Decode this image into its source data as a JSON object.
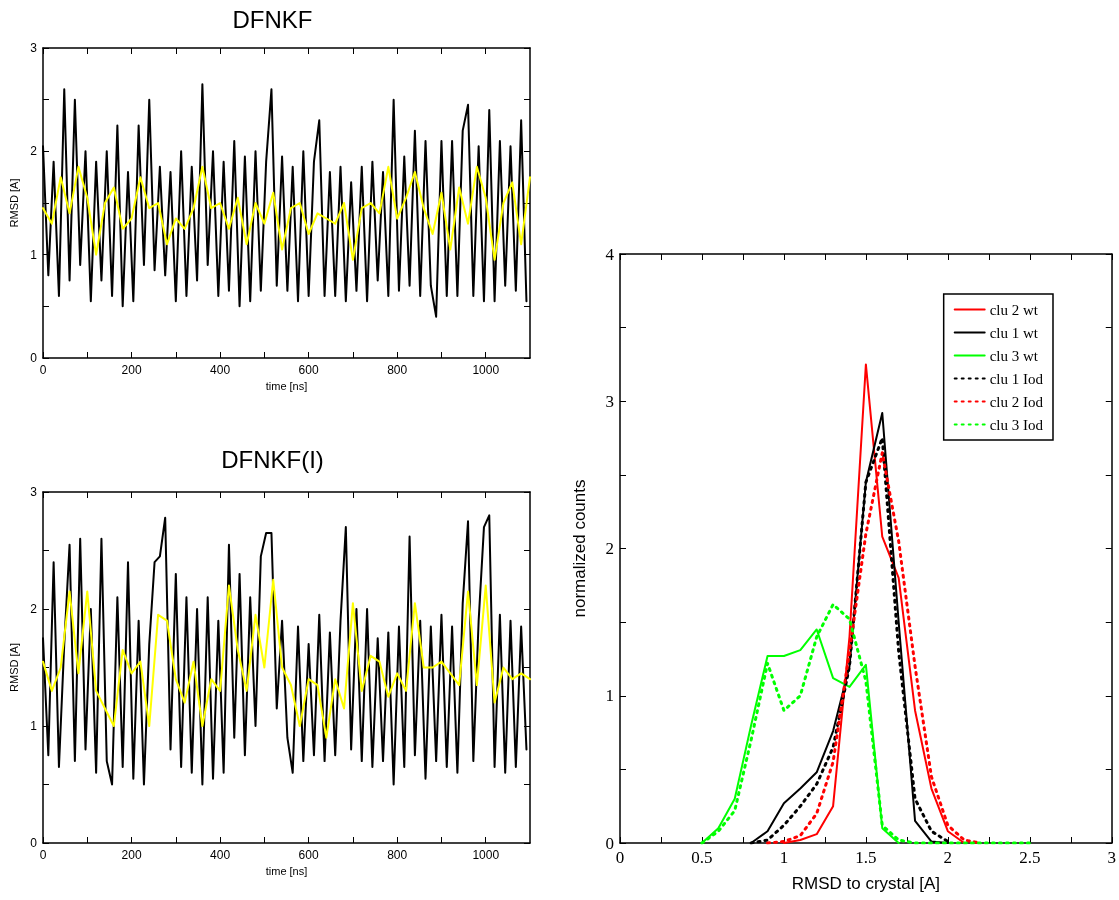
{
  "chart_data": [
    {
      "type": "line",
      "title": "DFNKF",
      "xlabel": "time [ns]",
      "ylabel": "RMSD [A]",
      "xlim": [
        0,
        1100
      ],
      "ylim": [
        0,
        3
      ],
      "xticks": [
        0,
        {
          "value": 100,
          "label": null
        },
        200,
        {
          "value": 300,
          "label": null
        },
        400,
        {
          "value": 500,
          "label": null
        },
        600,
        {
          "value": 700,
          "label": null
        },
        800,
        {
          "value": 900,
          "label": null
        },
        1000
      ],
      "yticks": [
        0,
        {
          "value": 0.5,
          "label": null
        },
        1,
        {
          "value": 1.5,
          "label": null
        },
        2,
        {
          "value": 2.5,
          "label": null
        },
        3
      ],
      "grid": false,
      "legend": false,
      "marker": "none",
      "series": [
        {
          "color": "#000000",
          "x": [
            0,
            12,
            24,
            36,
            48,
            60,
            72,
            84,
            96,
            108,
            120,
            132,
            144,
            156,
            168,
            180,
            192,
            204,
            216,
            228,
            240,
            252,
            264,
            276,
            288,
            300,
            312,
            324,
            336,
            348,
            360,
            372,
            384,
            396,
            408,
            420,
            432,
            444,
            456,
            468,
            480,
            492,
            504,
            516,
            528,
            540,
            552,
            564,
            576,
            588,
            600,
            612,
            624,
            636,
            648,
            660,
            672,
            684,
            696,
            708,
            720,
            732,
            744,
            756,
            768,
            780,
            792,
            804,
            816,
            828,
            840,
            852,
            864,
            876,
            888,
            900,
            912,
            924,
            936,
            948,
            960,
            972,
            984,
            996,
            1008,
            1020,
            1032,
            1044,
            1056,
            1068,
            1080,
            1092
          ],
          "values": [
            2.05,
            0.8,
            1.9,
            0.6,
            2.6,
            0.75,
            2.5,
            0.9,
            2.0,
            0.55,
            1.9,
            0.75,
            2.0,
            0.6,
            2.25,
            0.5,
            1.8,
            0.55,
            2.25,
            0.9,
            2.5,
            0.85,
            1.85,
            0.8,
            1.8,
            0.55,
            2.0,
            0.6,
            1.85,
            0.75,
            2.65,
            0.9,
            2.0,
            0.6,
            1.9,
            0.65,
            2.1,
            0.5,
            1.95,
            0.55,
            2.0,
            0.65,
            1.9,
            2.6,
            0.7,
            1.95,
            0.65,
            1.85,
            0.55,
            2.0,
            0.6,
            1.9,
            2.3,
            0.6,
            1.8,
            0.6,
            1.85,
            0.55,
            1.7,
            0.65,
            1.85,
            0.55,
            1.9,
            0.75,
            1.8,
            0.6,
            2.5,
            0.65,
            1.95,
            0.7,
            2.2,
            0.6,
            2.1,
            0.7,
            0.4,
            2.1,
            0.6,
            2.1,
            0.6,
            2.2,
            2.45,
            0.6,
            2.05,
            0.55,
            2.4,
            0.55,
            2.1,
            0.7,
            2.05,
            0.65,
            2.3,
            0.55
          ]
        },
        {
          "color": "#ffff00",
          "x": [
            0,
            20,
            40,
            60,
            80,
            100,
            120,
            140,
            160,
            180,
            200,
            220,
            240,
            260,
            280,
            300,
            320,
            340,
            360,
            380,
            400,
            420,
            440,
            460,
            480,
            500,
            520,
            540,
            560,
            580,
            600,
            620,
            640,
            660,
            680,
            700,
            720,
            740,
            760,
            780,
            800,
            820,
            840,
            860,
            880,
            900,
            920,
            940,
            960,
            980,
            1000,
            1020,
            1040,
            1060,
            1080,
            1100
          ],
          "values": [
            1.45,
            1.3,
            1.75,
            1.4,
            1.85,
            1.55,
            1.0,
            1.5,
            1.65,
            1.25,
            1.35,
            1.75,
            1.45,
            1.5,
            1.1,
            1.35,
            1.25,
            1.45,
            1.85,
            1.45,
            1.5,
            1.25,
            1.55,
            1.1,
            1.5,
            1.3,
            1.6,
            1.05,
            1.45,
            1.5,
            1.2,
            1.4,
            1.35,
            1.3,
            1.5,
            0.95,
            1.45,
            1.5,
            1.4,
            1.85,
            1.35,
            1.55,
            1.8,
            1.45,
            1.2,
            1.6,
            1.05,
            1.65,
            1.3,
            1.85,
            1.55,
            0.95,
            1.5,
            1.7,
            1.1,
            1.75
          ]
        }
      ]
    },
    {
      "type": "line",
      "title": "DFNKF(I)",
      "xlabel": "time [ns]",
      "ylabel": "RMSD [A]",
      "xlim": [
        0,
        1100
      ],
      "ylim": [
        0,
        3
      ],
      "xticks": [
        0,
        {
          "value": 100,
          "label": null
        },
        200,
        {
          "value": 300,
          "label": null
        },
        400,
        {
          "value": 500,
          "label": null
        },
        600,
        {
          "value": 700,
          "label": null
        },
        800,
        {
          "value": 900,
          "label": null
        },
        1000
      ],
      "yticks": [
        0,
        {
          "value": 0.5,
          "label": null
        },
        1,
        {
          "value": 1.5,
          "label": null
        },
        2,
        {
          "value": 2.5,
          "label": null
        },
        3
      ],
      "grid": false,
      "legend": false,
      "marker": "none",
      "series": [
        {
          "color": "#000000",
          "x": [
            0,
            12,
            24,
            36,
            48,
            60,
            72,
            84,
            96,
            108,
            120,
            132,
            144,
            156,
            168,
            180,
            192,
            204,
            216,
            228,
            240,
            252,
            264,
            276,
            288,
            300,
            312,
            324,
            336,
            348,
            360,
            372,
            384,
            396,
            408,
            420,
            432,
            444,
            456,
            468,
            480,
            492,
            504,
            516,
            528,
            540,
            552,
            564,
            576,
            588,
            600,
            612,
            624,
            636,
            648,
            660,
            672,
            684,
            696,
            708,
            720,
            732,
            744,
            756,
            768,
            780,
            792,
            804,
            816,
            828,
            840,
            852,
            864,
            876,
            888,
            900,
            912,
            924,
            936,
            948,
            960,
            972,
            984,
            996,
            1008,
            1020,
            1032,
            1044,
            1056,
            1068,
            1080,
            1092
          ],
          "values": [
            1.75,
            0.75,
            2.4,
            0.65,
            1.7,
            2.55,
            0.7,
            2.6,
            0.8,
            2.0,
            0.6,
            2.6,
            0.7,
            0.5,
            2.1,
            0.65,
            2.4,
            0.55,
            1.9,
            0.5,
            1.7,
            2.4,
            2.45,
            2.78,
            0.8,
            2.3,
            0.65,
            2.1,
            0.6,
            2.0,
            0.5,
            2.1,
            0.55,
            1.9,
            0.6,
            2.55,
            0.9,
            2.3,
            0.75,
            2.1,
            1.0,
            2.45,
            2.65,
            2.65,
            1.15,
            1.9,
            0.9,
            0.6,
            1.85,
            0.7,
            1.7,
            0.75,
            1.95,
            0.7,
            1.8,
            0.75,
            1.9,
            2.7,
            0.8,
            2.0,
            0.7,
            2.0,
            0.65,
            1.75,
            0.7,
            1.8,
            0.5,
            1.85,
            0.65,
            2.62,
            0.75,
            1.9,
            0.55,
            1.85,
            0.7,
            1.95,
            0.65,
            1.85,
            0.6,
            2.05,
            2.75,
            0.7,
            1.9,
            2.7,
            2.8,
            0.65,
            1.95,
            0.6,
            1.9,
            0.65,
            1.85,
            0.8
          ]
        },
        {
          "color": "#ffff00",
          "x": [
            0,
            20,
            40,
            60,
            80,
            100,
            120,
            140,
            160,
            180,
            200,
            220,
            240,
            260,
            280,
            300,
            320,
            340,
            360,
            380,
            400,
            420,
            440,
            460,
            480,
            500,
            520,
            540,
            560,
            580,
            600,
            620,
            640,
            660,
            680,
            700,
            720,
            740,
            760,
            780,
            800,
            820,
            840,
            860,
            880,
            900,
            920,
            940,
            960,
            980,
            1000,
            1020,
            1040,
            1060,
            1080,
            1100
          ],
          "values": [
            1.55,
            1.3,
            1.5,
            2.15,
            1.45,
            2.15,
            1.3,
            1.15,
            1.0,
            1.65,
            1.45,
            1.55,
            1.0,
            1.95,
            1.9,
            1.4,
            1.2,
            1.55,
            1.0,
            1.4,
            1.3,
            2.2,
            1.65,
            1.3,
            1.95,
            1.5,
            2.25,
            1.5,
            1.35,
            1.0,
            1.4,
            1.35,
            0.9,
            1.4,
            1.15,
            2.05,
            1.3,
            1.6,
            1.55,
            1.25,
            1.45,
            1.3,
            2.05,
            1.5,
            1.5,
            1.55,
            1.45,
            1.35,
            2.15,
            1.35,
            2.2,
            1.2,
            1.5,
            1.4,
            1.45,
            1.4
          ]
        }
      ]
    },
    {
      "type": "line",
      "xlabel": "RMSD to crystal [A]",
      "ylabel": "normalized counts",
      "xlim": [
        0,
        3
      ],
      "ylim": [
        0,
        4
      ],
      "xticks": [
        0,
        {
          "value": 0.25,
          "label": null
        },
        0.5,
        {
          "value": 0.75,
          "label": null
        },
        1,
        {
          "value": 1.25,
          "label": null
        },
        1.5,
        {
          "value": 1.75,
          "label": null
        },
        2,
        {
          "value": 2.25,
          "label": null
        },
        2.5,
        {
          "value": 2.75,
          "label": null
        },
        3
      ],
      "yticks": [
        0,
        {
          "value": 0.5,
          "label": null
        },
        1,
        {
          "value": 1.5,
          "label": null
        },
        2,
        {
          "value": 2.5,
          "label": null
        },
        3,
        {
          "value": 3.5,
          "label": null
        },
        4
      ],
      "grid": false,
      "legend": "top right",
      "marker": "none",
      "x": [
        0.5,
        0.6,
        0.7,
        0.8,
        0.9,
        1.0,
        1.1,
        1.2,
        1.3,
        1.4,
        1.5,
        1.6,
        1.7,
        1.8,
        1.9,
        2.0,
        2.1,
        2.2,
        2.3,
        2.4,
        2.5
      ],
      "series": [
        {
          "name": "clu 2 wt",
          "color": "#ff0000",
          "line_style": "solid",
          "values": [
            null,
            null,
            null,
            null,
            null,
            0,
            0.02,
            0.06,
            0.25,
            1.4,
            3.25,
            2.08,
            1.8,
            0.9,
            0.37,
            0.08,
            0,
            null,
            null,
            null,
            null
          ]
        },
        {
          "name": "clu 1 wt",
          "color": "#000000",
          "line_style": "solid",
          "values": [
            null,
            null,
            null,
            0,
            0.08,
            0.27,
            0.37,
            0.48,
            0.76,
            1.2,
            2.45,
            2.92,
            1.5,
            0.15,
            0.01,
            0,
            null,
            null,
            null,
            null,
            null
          ]
        },
        {
          "name": "clu 3 wt",
          "color": "#00ff00",
          "line_style": "solid",
          "values": [
            0,
            0.1,
            0.3,
            0.8,
            1.27,
            1.27,
            1.31,
            1.45,
            1.12,
            1.06,
            1.21,
            0.1,
            0,
            null,
            null,
            null,
            null,
            null,
            null,
            null,
            null
          ]
        },
        {
          "name": "clu 1 Iod",
          "color": "#000000",
          "line_style": "dotted",
          "values": [
            null,
            null,
            null,
            0,
            0.02,
            0.12,
            0.25,
            0.4,
            0.65,
            1.2,
            2.45,
            2.75,
            1.3,
            0.3,
            0.08,
            0.01,
            null,
            null,
            null,
            null,
            null
          ]
        },
        {
          "name": "clu 2 Iod",
          "color": "#ff0000",
          "line_style": "dotted",
          "values": [
            null,
            null,
            null,
            null,
            0,
            0.01,
            0.05,
            0.2,
            0.55,
            1.3,
            2.1,
            2.65,
            2.05,
            1.2,
            0.45,
            0.12,
            0.02,
            0,
            null,
            null,
            null
          ]
        },
        {
          "name": "clu 3 Iod",
          "color": "#00ff00",
          "line_style": "dotted",
          "values": [
            0,
            0.08,
            0.22,
            0.7,
            1.22,
            0.9,
            1.0,
            1.4,
            1.62,
            1.52,
            1.1,
            0.12,
            0.02,
            0,
            0,
            0,
            0,
            0,
            0,
            0,
            0
          ]
        }
      ]
    }
  ]
}
